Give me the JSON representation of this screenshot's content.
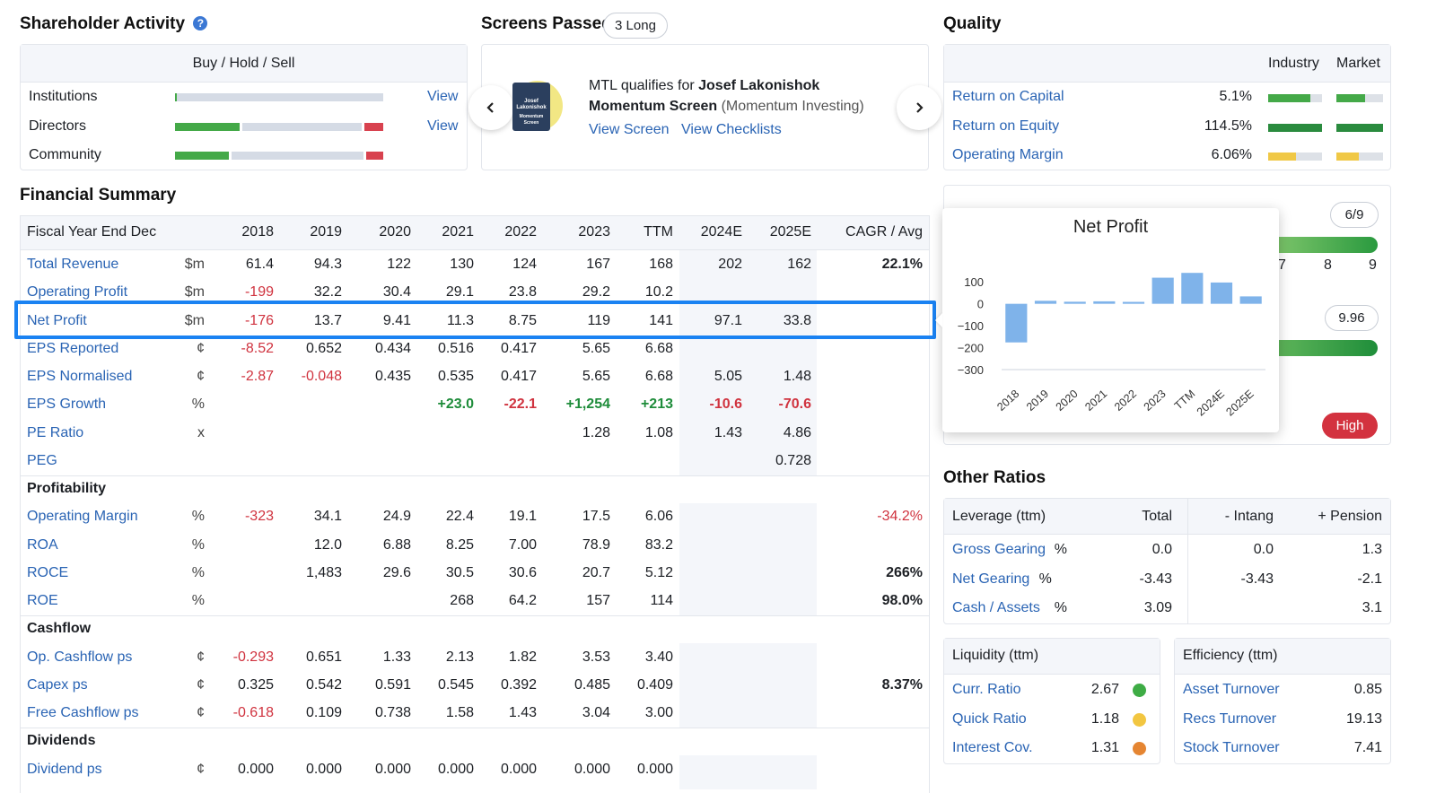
{
  "shareholder": {
    "title": "Shareholder Activity",
    "subheader": "Buy / Hold / Sell",
    "rows": [
      {
        "label": "Institutions",
        "link": "View",
        "buy": 0.005,
        "sell": 0.0
      },
      {
        "label": "Directors",
        "link": "View",
        "buy": 0.31,
        "sell": 0.09
      },
      {
        "label": "Community",
        "link": "",
        "buy": 0.26,
        "sell": 0.08
      }
    ]
  },
  "screens": {
    "title": "Screens Passed:",
    "badge": "3 Long",
    "text_prefix": "MTL qualifies for",
    "screen_name": "Josef Lakonishok Momentum Screen",
    "category": "(Momentum Investing)",
    "book_line1": "Josef",
    "book_line2": "Lakonishok",
    "book_line3": "Momentum",
    "book_line4": "Screen",
    "link_view_screen": "View Screen",
    "link_view_checklists": "View Checklists"
  },
  "quality": {
    "title": "Quality",
    "col_industry": "Industry",
    "col_market": "Market",
    "rows": [
      {
        "label": "Return on Capital",
        "value": "5.1%",
        "industry": 0.78,
        "market": 0.62,
        "color": "#44a948"
      },
      {
        "label": "Return on Equity",
        "value": "114.5%",
        "industry": 1.0,
        "market": 1.0,
        "color": "#2a8b3e"
      },
      {
        "label": "Operating Margin",
        "value": "6.06%",
        "industry": 0.52,
        "market": 0.48,
        "color": "#f0c846"
      }
    ]
  },
  "hidden_panel": {
    "score1": "6/9",
    "ticks": [
      "7",
      "8",
      "9"
    ],
    "score2": "9.96",
    "badge_high": "High"
  },
  "financial": {
    "title": "Financial Summary",
    "header": [
      "Fiscal Year End Dec",
      "2018",
      "2019",
      "2020",
      "2021",
      "2022",
      "2023",
      "TTM",
      "2024E",
      "2025E",
      "CAGR / Avg"
    ],
    "rows": [
      {
        "type": "data",
        "label": "Total Revenue",
        "unit": "$m",
        "values": [
          "61.4",
          "94.3",
          "122",
          "130",
          "124",
          "167",
          "168",
          "202",
          "162"
        ],
        "cagr": "22.1%",
        "cagr_style": "bold"
      },
      {
        "type": "data",
        "label": "Operating Profit",
        "unit": "$m",
        "values": [
          "-199",
          "32.2",
          "30.4",
          "29.1",
          "23.8",
          "29.2",
          "10.2",
          "",
          ""
        ],
        "cagr": ""
      },
      {
        "type": "data",
        "label": "Net Profit",
        "unit": "$m",
        "values": [
          "-176",
          "13.7",
          "9.41",
          "11.3",
          "8.75",
          "119",
          "141",
          "97.1",
          "33.8"
        ],
        "cagr": ""
      },
      {
        "type": "data",
        "label": "EPS Reported",
        "unit": "¢",
        "values": [
          "-8.52",
          "0.652",
          "0.434",
          "0.516",
          "0.417",
          "5.65",
          "6.68",
          "",
          ""
        ],
        "cagr": ""
      },
      {
        "type": "data",
        "label": "EPS Normalised",
        "unit": "¢",
        "values": [
          "-2.87",
          "-0.048",
          "0.435",
          "0.535",
          "0.417",
          "5.65",
          "6.68",
          "5.05",
          "1.48"
        ],
        "cagr": ""
      },
      {
        "type": "data",
        "label": "EPS Growth",
        "unit": "%",
        "values": [
          "",
          "",
          "",
          "+23.0",
          "-22.1",
          "+1,254",
          "+213",
          "-10.6",
          "-70.6"
        ],
        "cagr": "",
        "growth": true
      },
      {
        "type": "data",
        "label": "PE Ratio",
        "unit": "x",
        "values": [
          "",
          "",
          "",
          "",
          "",
          "1.28",
          "1.08",
          "1.43",
          "4.86"
        ],
        "cagr": ""
      },
      {
        "type": "data",
        "label": "PEG",
        "unit": "",
        "values": [
          "",
          "",
          "",
          "",
          "",
          "",
          "",
          "",
          "0.728"
        ],
        "cagr": ""
      },
      {
        "type": "section",
        "label": "Profitability"
      },
      {
        "type": "data",
        "label": "Operating Margin",
        "unit": "%",
        "values": [
          "-323",
          "34.1",
          "24.9",
          "22.4",
          "19.1",
          "17.5",
          "6.06",
          "",
          ""
        ],
        "cagr": "-34.2%",
        "cagr_style": "neg"
      },
      {
        "type": "data",
        "label": "ROA",
        "unit": "%",
        "values": [
          "",
          "12.0",
          "6.88",
          "8.25",
          "7.00",
          "78.9",
          "83.2",
          "",
          ""
        ],
        "cagr": ""
      },
      {
        "type": "data",
        "label": "ROCE",
        "unit": "%",
        "values": [
          "",
          "1,483",
          "29.6",
          "30.5",
          "30.6",
          "20.7",
          "5.12",
          "",
          ""
        ],
        "cagr": "266%",
        "cagr_style": "bold"
      },
      {
        "type": "data",
        "label": "ROE",
        "unit": "%",
        "values": [
          "",
          "",
          "",
          "268",
          "64.2",
          "157",
          "114",
          "",
          ""
        ],
        "cagr": "98.0%",
        "cagr_style": "bold"
      },
      {
        "type": "section",
        "label": "Cashflow"
      },
      {
        "type": "data",
        "label": "Op. Cashflow ps",
        "unit": "¢",
        "values": [
          "-0.293",
          "0.651",
          "1.33",
          "2.13",
          "1.82",
          "3.53",
          "3.40",
          "",
          ""
        ],
        "cagr": ""
      },
      {
        "type": "data",
        "label": "Capex ps",
        "unit": "¢",
        "values": [
          "0.325",
          "0.542",
          "0.591",
          "0.545",
          "0.392",
          "0.485",
          "0.409",
          "",
          ""
        ],
        "cagr": "8.37%",
        "cagr_style": "bold"
      },
      {
        "type": "data",
        "label": "Free Cashflow ps",
        "unit": "¢",
        "values": [
          "-0.618",
          "0.109",
          "0.738",
          "1.58",
          "1.43",
          "3.04",
          "3.00",
          "",
          ""
        ],
        "cagr": ""
      },
      {
        "type": "section",
        "label": "Dividends"
      },
      {
        "type": "data",
        "label": "Dividend ps",
        "unit": "¢",
        "values": [
          "0.000",
          "0.000",
          "0.000",
          "0.000",
          "0.000",
          "0.000",
          "0.000",
          "",
          ""
        ],
        "cagr": ""
      }
    ]
  },
  "tooltip_chart": {
    "title": "Net Profit"
  },
  "chart_data": {
    "type": "bar",
    "title": "Net Profit",
    "categories": [
      "2018",
      "2019",
      "2020",
      "2021",
      "2022",
      "2023",
      "TTM",
      "2024E",
      "2025E"
    ],
    "values": [
      -176,
      13.7,
      9.41,
      11.3,
      8.75,
      119,
      141,
      97.1,
      33.8
    ],
    "ylim": [
      -300,
      150
    ],
    "yticks": [
      "100",
      "0",
      "−100",
      "−200",
      "−300"
    ],
    "color": "#7fb3ea"
  },
  "other_ratios": {
    "title": "Other Ratios",
    "leverage": {
      "header": [
        "Leverage (ttm)",
        "Total",
        "- Intang",
        "+ Pension"
      ],
      "rows": [
        {
          "label": "Gross Gearing",
          "unit": "%",
          "total": "0.0",
          "intang": "0.0",
          "pension": "1.3"
        },
        {
          "label": "Net Gearing",
          "unit": "%",
          "total": "-3.43",
          "intang": "-3.43",
          "pension": "-2.1"
        },
        {
          "label": "Cash / Assets",
          "unit": "%",
          "total": "3.09",
          "intang": "",
          "pension": "3.1"
        }
      ]
    },
    "liquidity": {
      "header": "Liquidity (ttm)",
      "rows": [
        {
          "label": "Curr. Ratio",
          "value": "2.67",
          "dot": "#3eac45"
        },
        {
          "label": "Quick Ratio",
          "value": "1.18",
          "dot": "#f2c641"
        },
        {
          "label": "Interest Cov.",
          "value": "1.31",
          "dot": "#e58532"
        }
      ]
    },
    "efficiency": {
      "header": "Efficiency (ttm)",
      "rows": [
        {
          "label": "Asset Turnover",
          "value": "0.85"
        },
        {
          "label": "Recs Turnover",
          "value": "19.13"
        },
        {
          "label": "Stock Turnover",
          "value": "7.41"
        }
      ]
    }
  }
}
